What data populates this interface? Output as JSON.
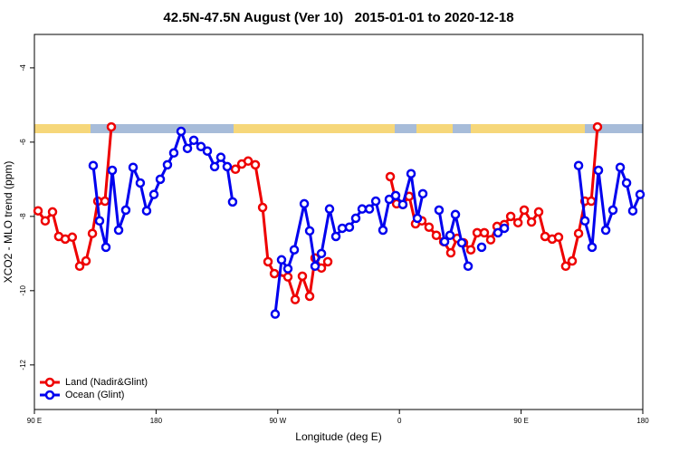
{
  "chart_data": {
    "type": "line",
    "title": "42.5N-47.5N August (Ver 10)   2015-01-01 to 2020-12-18",
    "x_label": "Longitude (deg E)",
    "y_label": "XCO2 - MLO trend (ppm)",
    "xlim": [
      90,
      540
    ],
    "xticks": [
      {
        "value": 90,
        "label": "90 E"
      },
      {
        "value": 180,
        "label": "180"
      },
      {
        "value": 270,
        "label": "90 W"
      },
      {
        "value": 360,
        "label": "0"
      },
      {
        "value": 450,
        "label": "90 E"
      },
      {
        "value": 540,
        "label": "180"
      }
    ],
    "ylim": [
      -13.2,
      -3.1
    ],
    "yticks": [
      -4,
      -6,
      -8,
      -10,
      -12
    ],
    "legend": "lower left",
    "series": [
      {
        "name": "Land (Nadir&Glint)",
        "color": "#ee0000",
        "x": [
          92.7,
          98,
          103.4,
          108,
          112.8,
          118,
          123.5,
          128.2,
          132.9,
          136.9,
          142.2,
          146.9,
          null,
          238.7,
          243.4,
          248.1,
          253.4,
          258.8,
          262.8,
          267.5,
          277.5,
          282.9,
          288.2,
          293.6,
          297.6,
          302.3,
          307,
          null,
          353.2,
          357.9,
          362.5,
          367.2,
          371.9,
          376.6,
          381.9,
          387.3,
          392.7,
          398,
          402.7,
          407.4,
          412.8,
          417.5,
          422.8,
          427.5,
          432.2,
          437.6,
          442.3,
          447.7,
          452.3,
          457.7,
          463,
          467.7,
          473,
          477.7,
          483,
          487.8,
          492.5,
          497.2,
          501.9,
          506.5
        ],
        "values": [
          -7.85,
          -8.12,
          -7.88,
          -8.54,
          -8.61,
          -8.56,
          -9.34,
          -9.2,
          -8.46,
          -7.59,
          -7.59,
          -5.59,
          null,
          -6.73,
          -6.59,
          -6.51,
          -6.61,
          -7.76,
          -9.22,
          -9.54,
          -9.63,
          -10.24,
          -9.61,
          -10.15,
          -9.12,
          -9.39,
          -9.22,
          null,
          -6.93,
          -7.66,
          -7.68,
          -7.46,
          -8.2,
          -8.12,
          -8.29,
          -8.51,
          -8.68,
          -8.98,
          -8.59,
          -8.71,
          -8.9,
          -8.44,
          -8.44,
          -8.63,
          -8.27,
          -8.22,
          -8.0,
          -8.17,
          -7.83,
          -8.15,
          -7.88,
          -8.54,
          -8.61,
          -8.56,
          -9.34,
          -9.2,
          -8.46,
          -7.59,
          -7.59,
          -5.59
        ]
      },
      {
        "name": "Ocean (Glint)",
        "color": "#0000ee",
        "x": [
          133.5,
          138.2,
          142.9,
          147.6,
          152.3,
          157.6,
          163,
          168.3,
          173,
          178.4,
          183.1,
          188.4,
          193.1,
          198.5,
          203.2,
          207.9,
          213.2,
          217.9,
          223.3,
          227.9,
          232.6,
          236.6,
          null,
          268.1,
          272.8,
          277.5,
          282.2,
          289.6,
          293.6,
          297.6,
          302.3,
          308.3,
          313,
          317.7,
          323,
          327.7,
          332.4,
          337.8,
          342.5,
          347.8,
          352.5,
          357.2,
          362.5,
          368.6,
          373.3,
          377.3,
          null,
          389.3,
          393.4,
          397.4,
          401.4,
          406.1,
          410.8,
          null,
          420.8,
          null,
          432.9,
          437.6,
          null,
          492.5,
          497.2,
          502.5,
          507.2,
          512.6,
          517.9,
          523.3,
          528,
          532.6,
          538
        ],
        "values": [
          -6.63,
          -8.12,
          -8.83,
          -6.76,
          -8.37,
          -7.83,
          -6.68,
          -7.1,
          -7.85,
          -7.41,
          -7.0,
          -6.61,
          -6.29,
          -5.71,
          -6.17,
          -5.95,
          -6.12,
          -6.24,
          -6.66,
          -6.41,
          -6.66,
          -7.61,
          null,
          -10.63,
          -9.17,
          -9.41,
          -8.9,
          -7.66,
          -8.39,
          -9.34,
          -9.0,
          -7.8,
          -8.54,
          -8.32,
          -8.29,
          -8.05,
          -7.8,
          -7.8,
          -7.59,
          -8.37,
          -7.54,
          -7.44,
          -7.68,
          -6.85,
          -8.05,
          -7.39,
          null,
          -7.83,
          -8.68,
          -8.51,
          -7.95,
          -8.71,
          -9.34,
          null,
          -8.83,
          null,
          -8.44,
          -8.32,
          null,
          -6.63,
          -8.12,
          -8.83,
          -6.76,
          -8.37,
          -7.83,
          -6.68,
          -7.1,
          -7.85,
          -7.41
        ]
      }
    ]
  }
}
